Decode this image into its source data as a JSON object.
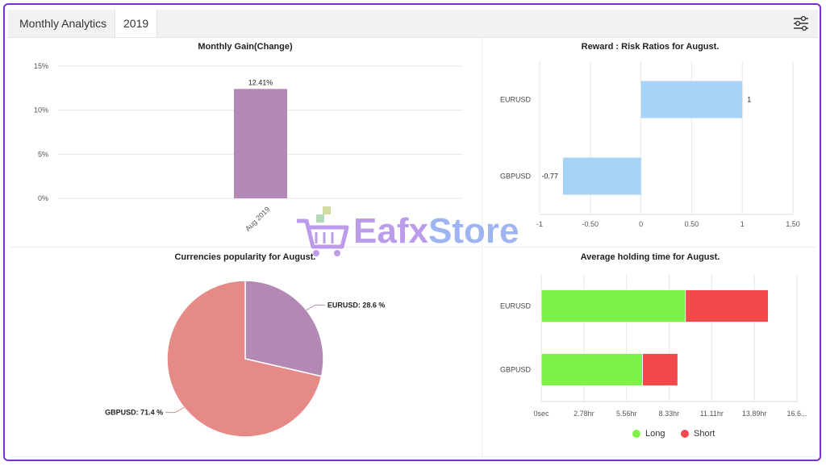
{
  "header": {
    "title": "Monthly Analytics",
    "year_tab": "2019",
    "settings_icon": "sliders-icon"
  },
  "watermark": {
    "brand": "Eafx",
    "brand2": "Store",
    "icon": "shopping-cart-icon"
  },
  "colors": {
    "bar_purple": "#b388b5",
    "risk_blue": "#a6d3f7",
    "pie_red": "#e58a86",
    "pie_purple": "#b388b5",
    "long_green": "#7ff24a",
    "short_red": "#f24a4a",
    "frame_purple": "#7a2fd0"
  },
  "chart_data": [
    {
      "id": "monthly_gain",
      "type": "bar",
      "title": "Monthly Gain(Change)",
      "categories": [
        "Aug 2019"
      ],
      "values": [
        12.41
      ],
      "data_labels": [
        "12.41%"
      ],
      "ylim": [
        0,
        15
      ],
      "yticks": [
        "0%",
        "5%",
        "10%",
        "15%"
      ],
      "ytick_values": [
        0,
        5,
        10,
        15
      ],
      "grid": true
    },
    {
      "id": "reward_risk",
      "type": "bar",
      "orientation": "horizontal",
      "title": "Reward : Risk Ratios for August.",
      "categories": [
        "EURUSD",
        "GBPUSD"
      ],
      "values": [
        1,
        -0.77
      ],
      "data_labels": [
        "1",
        "-0.77"
      ],
      "xlim": [
        -1,
        1.5
      ],
      "xticks": [
        "-1",
        "-0.50",
        "0",
        "0.50",
        "1",
        "1.50"
      ],
      "xtick_values": [
        -1,
        -0.5,
        0,
        0.5,
        1,
        1.5
      ],
      "grid": true
    },
    {
      "id": "currency_popularity",
      "type": "pie",
      "title": "Currencies popularity for August.",
      "slices": [
        {
          "label": "EURUSD: 28.6 %",
          "value": 28.6
        },
        {
          "label": "GBPUSD: 71.4 %",
          "value": 71.4
        }
      ]
    },
    {
      "id": "holding_time",
      "type": "bar",
      "orientation": "horizontal",
      "stacked": true,
      "title": "Average holding time for August.",
      "categories": [
        "EURUSD",
        "GBPUSD"
      ],
      "series": [
        {
          "name": "Long",
          "values": [
            9.4,
            6.6
          ]
        },
        {
          "name": "Short",
          "values": [
            5.4,
            2.3
          ]
        }
      ],
      "xlim": [
        0,
        16.67
      ],
      "xticks": [
        "0sec",
        "2.78hr",
        "5.56hr",
        "8.33hr",
        "11.11hr",
        "13.89hr",
        "16.6..."
      ],
      "xtick_values": [
        0,
        2.78,
        5.56,
        8.33,
        11.11,
        13.89,
        16.67
      ],
      "legend": "bottom",
      "grid": true
    }
  ]
}
